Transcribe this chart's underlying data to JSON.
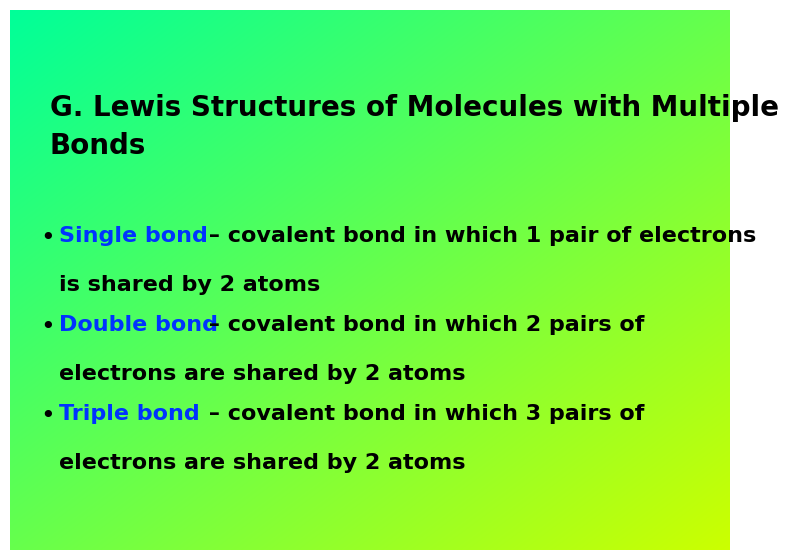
{
  "title_line1": "G. Lewis Structures of Molecules with Multiple",
  "title_line2": "Bonds",
  "title_color": "#000000",
  "title_fontsize": 20,
  "bullet_fontsize": 16,
  "highlight_color": "#0033FF",
  "black": "#000000",
  "bullets": [
    {
      "highlight": "Single bond",
      "rest1": " – covalent bond in which 1 pair of electrons",
      "rest2": "is shared by 2 atoms"
    },
    {
      "highlight": "Double bond",
      "rest1": " – covalent bond in which 2 pairs of",
      "rest2": "electrons are shared by 2 atoms"
    },
    {
      "highlight": "Triple bond",
      "rest1": " – covalent bond in which 3 pairs of",
      "rest2": "electrons are shared by 2 atoms"
    }
  ],
  "gradient_topleft": [
    0.0,
    1.0,
    0.6
  ],
  "gradient_bottomright": [
    0.8,
    1.0,
    0.0
  ]
}
